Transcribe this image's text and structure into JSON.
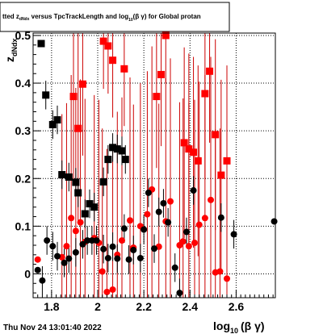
{
  "title_box": {
    "text_pre": "tted  z",
    "sub1": "dNdx",
    "text_mid": " versus TpcTrackLength and log",
    "sub2": "10",
    "text_post": "(β γ) for Global protan"
  },
  "timestamp": "Thu Nov 24 13:01:40 2022",
  "chart_data": {
    "type": "scatter",
    "title": "",
    "xlabel": "log10(β γ)",
    "xlabel_main": "log",
    "xlabel_sub": "10",
    "xlabel_tail": "(β γ)",
    "ylabel": "z dNdx",
    "ylabel_main": "z",
    "ylabel_sub": "dNdx",
    "xlim": [
      1.72,
      2.77
    ],
    "ylim": [
      -0.05,
      0.505
    ],
    "xticks": [
      1.8,
      2.0,
      2.2,
      2.4,
      2.6
    ],
    "xtick_labels": [
      "1.8",
      "2",
      "2.2",
      "2.4",
      "2.6"
    ],
    "yticks": [
      0,
      0.1,
      0.2,
      0.3,
      0.4,
      0.5
    ],
    "ytick_labels": [
      "0",
      "0.1",
      "0.2",
      "0.3",
      "0.4",
      "0.5"
    ],
    "grid": true,
    "colors": {
      "red": "#ff0000",
      "black": "#000000",
      "errorbar_red": "#cc0000"
    },
    "series": [
      {
        "color": "red",
        "marker": "square",
        "points": [
          {
            "x": 1.895,
            "y": 0.372,
            "err": 0.18
          },
          {
            "x": 1.915,
            "y": 0.305,
            "err": 0.2
          },
          {
            "x": 1.935,
            "y": 0.398,
            "err": 0.15
          },
          {
            "x": 2.025,
            "y": 0.488,
            "err": 0.1
          },
          {
            "x": 2.045,
            "y": 0.478,
            "err": 0.1
          },
          {
            "x": 2.065,
            "y": 0.448,
            "err": 0.12
          },
          {
            "x": 2.115,
            "y": 0.43,
            "err": 0.12
          },
          {
            "x": 2.255,
            "y": 0.372,
            "err": 0.15
          },
          {
            "x": 2.275,
            "y": 0.418,
            "err": 0.15
          },
          {
            "x": 2.295,
            "y": 0.5,
            "err": 0.1
          },
          {
            "x": 2.375,
            "y": 0.275,
            "err": 0.2
          },
          {
            "x": 2.395,
            "y": 0.262,
            "err": 0.2
          },
          {
            "x": 2.415,
            "y": 0.255,
            "err": 0.2
          },
          {
            "x": 2.435,
            "y": 0.237,
            "err": 0.2
          },
          {
            "x": 2.465,
            "y": 0.378,
            "err": 0.18
          },
          {
            "x": 2.485,
            "y": 0.425,
            "err": 0.15
          },
          {
            "x": 2.51,
            "y": 0.292,
            "err": 0.2
          },
          {
            "x": 2.535,
            "y": 0.207,
            "err": 0.2
          },
          {
            "x": 2.56,
            "y": 0.237,
            "err": 0.2
          }
        ]
      },
      {
        "color": "red",
        "marker": "circle",
        "points": [
          {
            "x": 1.74,
            "y": 0.03,
            "err": 0.0
          },
          {
            "x": 1.845,
            "y": 0.035,
            "err": 0.3
          },
          {
            "x": 1.865,
            "y": 0.058,
            "err": 0.3
          },
          {
            "x": 1.885,
            "y": 0.117,
            "err": 0.3
          },
          {
            "x": 1.905,
            "y": 0.09,
            "err": 0.3
          },
          {
            "x": 1.925,
            "y": 0.108,
            "err": 0.3
          },
          {
            "x": 1.945,
            "y": 0.067,
            "err": 0.3
          },
          {
            "x": 1.985,
            "y": 0.075,
            "err": 0.3
          },
          {
            "x": 2.005,
            "y": 0.065,
            "err": 0.3
          },
          {
            "x": 2.02,
            "y": 0.005,
            "err": 0.3
          },
          {
            "x": 2.04,
            "y": -0.038,
            "err": 0.3
          },
          {
            "x": 2.065,
            "y": -0.033,
            "err": 0.3
          },
          {
            "x": 2.085,
            "y": 0.04,
            "err": 0.3
          },
          {
            "x": 2.105,
            "y": 0.07,
            "err": 0.3
          },
          {
            "x": 2.14,
            "y": 0.112,
            "err": 0.3
          },
          {
            "x": 2.155,
            "y": 0.055,
            "err": 0.3
          },
          {
            "x": 2.185,
            "y": 0.1,
            "err": 0.3
          },
          {
            "x": 2.215,
            "y": 0.125,
            "err": 0.3
          },
          {
            "x": 2.235,
            "y": 0.177,
            "err": 0.3
          },
          {
            "x": 2.265,
            "y": 0.057,
            "err": 0.3
          },
          {
            "x": 2.295,
            "y": 0.11,
            "err": 0.3
          },
          {
            "x": 2.315,
            "y": 0.152,
            "err": 0.3
          },
          {
            "x": 2.355,
            "y": 0.06,
            "err": 0.3
          },
          {
            "x": 2.37,
            "y": 0.068,
            "err": 0.3
          },
          {
            "x": 2.395,
            "y": 0.058,
            "err": 0.3
          },
          {
            "x": 2.42,
            "y": 0.065,
            "err": 0.3
          },
          {
            "x": 2.44,
            "y": 0.103,
            "err": 0.3
          },
          {
            "x": 2.465,
            "y": 0.117,
            "err": 0.3
          },
          {
            "x": 2.49,
            "y": 0.155,
            "err": 0.3
          },
          {
            "x": 2.51,
            "y": 0.003,
            "err": 0.3
          },
          {
            "x": 2.53,
            "y": 0.005,
            "err": 0.3
          },
          {
            "x": 2.56,
            "y": -0.01,
            "err": 0.3
          }
        ]
      },
      {
        "color": "black",
        "marker": "square",
        "points": [
          {
            "x": 1.755,
            "y": 0.483,
            "err": 0.0
          },
          {
            "x": 1.775,
            "y": 0.375,
            "err": 0.03
          },
          {
            "x": 1.805,
            "y": 0.313,
            "err": 0.03
          },
          {
            "x": 1.825,
            "y": 0.323,
            "err": 0.03
          },
          {
            "x": 1.845,
            "y": 0.208,
            "err": 0.03
          },
          {
            "x": 1.875,
            "y": 0.203,
            "err": 0.03
          },
          {
            "x": 1.905,
            "y": 0.192,
            "err": 0.03
          },
          {
            "x": 1.915,
            "y": 0.17,
            "err": 0.03
          },
          {
            "x": 1.945,
            "y": 0.126,
            "err": 0.03
          },
          {
            "x": 1.965,
            "y": 0.147,
            "err": 0.03
          },
          {
            "x": 1.985,
            "y": 0.14,
            "err": 0.03
          },
          {
            "x": 2.025,
            "y": 0.193,
            "err": 0.03
          },
          {
            "x": 2.045,
            "y": 0.24,
            "err": 0.03
          },
          {
            "x": 2.065,
            "y": 0.265,
            "err": 0.03
          },
          {
            "x": 2.085,
            "y": 0.262,
            "err": 0.03
          },
          {
            "x": 2.105,
            "y": 0.258,
            "err": 0.03
          },
          {
            "x": 2.12,
            "y": 0.24,
            "err": 0.03
          }
        ]
      },
      {
        "color": "black",
        "marker": "circle",
        "points": [
          {
            "x": 1.74,
            "y": 0.008,
            "err": 0.0
          },
          {
            "x": 1.76,
            "y": -0.014,
            "err": 0.03
          },
          {
            "x": 1.78,
            "y": 0.07,
            "err": 0.03
          },
          {
            "x": 1.805,
            "y": 0.058,
            "err": 0.03
          },
          {
            "x": 1.825,
            "y": 0.037,
            "err": 0.03
          },
          {
            "x": 1.855,
            "y": 0.023,
            "err": 0.03
          },
          {
            "x": 1.875,
            "y": 0.032,
            "err": 0.03
          },
          {
            "x": 1.905,
            "y": 0.045,
            "err": 0.03
          },
          {
            "x": 1.935,
            "y": 0.062,
            "err": 0.03
          },
          {
            "x": 1.955,
            "y": 0.07,
            "err": 0.03
          },
          {
            "x": 1.975,
            "y": 0.07,
            "err": 0.03
          },
          {
            "x": 1.995,
            "y": 0.07,
            "err": 0.03
          },
          {
            "x": 2.025,
            "y": 0.052,
            "err": 0.03
          },
          {
            "x": 2.045,
            "y": 0.033,
            "err": 0.03
          },
          {
            "x": 2.065,
            "y": 0.057,
            "err": 0.03
          },
          {
            "x": 2.085,
            "y": 0.032,
            "err": 0.03
          },
          {
            "x": 2.115,
            "y": 0.095,
            "err": 0.03
          },
          {
            "x": 2.135,
            "y": 0.03,
            "err": 0.03
          },
          {
            "x": 2.155,
            "y": 0.05,
            "err": 0.03
          },
          {
            "x": 2.185,
            "y": 0.033,
            "err": 0.03
          },
          {
            "x": 2.2,
            "y": 0.093,
            "err": 0.03
          },
          {
            "x": 2.22,
            "y": 0.17,
            "err": 0.03
          },
          {
            "x": 2.245,
            "y": 0.053,
            "err": 0.03
          },
          {
            "x": 2.265,
            "y": 0.13,
            "err": 0.03
          },
          {
            "x": 2.285,
            "y": 0.148,
            "err": 0.03
          },
          {
            "x": 2.305,
            "y": 0.108,
            "err": 0.03
          },
          {
            "x": 2.335,
            "y": 0.013,
            "err": 0.03
          },
          {
            "x": 2.355,
            "y": -0.04,
            "err": 0.03
          },
          {
            "x": 2.385,
            "y": 0.088,
            "err": 0.03
          },
          {
            "x": 2.415,
            "y": 0.175,
            "err": 0.03
          },
          {
            "x": 2.535,
            "y": 0.118,
            "err": 0.03
          },
          {
            "x": 2.59,
            "y": 0.083,
            "err": 0.03
          },
          {
            "x": 2.765,
            "y": 0.11,
            "err": 0.0
          }
        ]
      }
    ]
  }
}
